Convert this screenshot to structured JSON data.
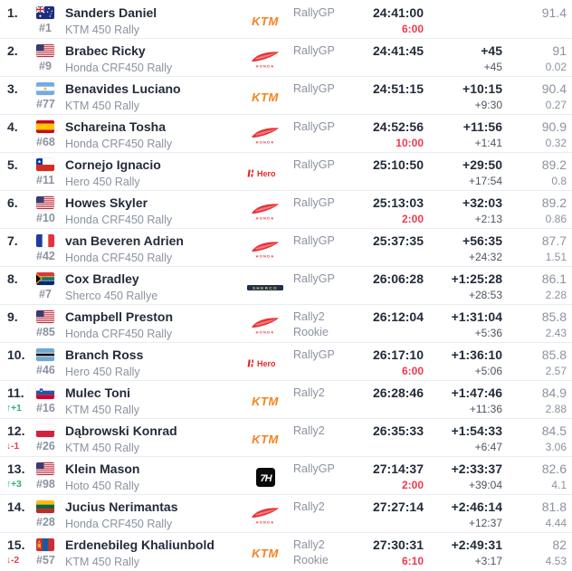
{
  "colors": {
    "text_dark": "#222b3a",
    "text_gray": "#8b92a1",
    "gap_interval_gray": "#4d5461",
    "penalty_red": "#ee3a4d",
    "change_up_green": "#2bb673",
    "change_down_red": "#ee3a4d",
    "divider": "#e9ebf0",
    "ktm_orange": "#f5821f",
    "honda_red": "#e62e34",
    "hero_red": "#e02a26",
    "sherco_navy": "#23304d",
    "sherco_yellow": "#cdd84a",
    "hoto_black": "#0a0a0a"
  },
  "glyphs": {
    "arrow_up": "↑",
    "arrow_down": "↓"
  },
  "table": {
    "rows": [
      {
        "position": "1.",
        "change": null,
        "flag": "australia",
        "rider": "Sanders Daniel",
        "number": "#1",
        "bike": "KTM 450 Rally",
        "brand": "ktm",
        "category": "RallyGP",
        "subcategory": "",
        "time": "24:41:00",
        "penalty": "6:00",
        "gap": "",
        "gap_interval": "",
        "score": "91.4",
        "score_gap": ""
      },
      {
        "position": "2.",
        "change": null,
        "flag": "usa",
        "rider": "Brabec Ricky",
        "number": "#9",
        "bike": "Honda CRF450 Rally",
        "brand": "honda",
        "category": "RallyGP",
        "subcategory": "",
        "time": "24:41:45",
        "penalty": "",
        "gap": "+45",
        "gap_interval": "+45",
        "score": "91",
        "score_gap": "0.02"
      },
      {
        "position": "3.",
        "change": null,
        "flag": "argentina",
        "rider": "Benavides Luciano",
        "number": "#77",
        "bike": "KTM 450 Rally",
        "brand": "ktm",
        "category": "RallyGP",
        "subcategory": "",
        "time": "24:51:15",
        "penalty": "",
        "gap": "+10:15",
        "gap_interval": "+9:30",
        "score": "90.4",
        "score_gap": "0.27"
      },
      {
        "position": "4.",
        "change": null,
        "flag": "spain",
        "rider": "Schareina Tosha",
        "number": "#68",
        "bike": "Honda CRF450 Rally",
        "brand": "honda",
        "category": "RallyGP",
        "subcategory": "",
        "time": "24:52:56",
        "penalty": "10:00",
        "gap": "+11:56",
        "gap_interval": "+1:41",
        "score": "90.9",
        "score_gap": "0.32"
      },
      {
        "position": "5.",
        "change": null,
        "flag": "chile",
        "rider": "Cornejo Ignacio",
        "number": "#11",
        "bike": "Hero 450 Rally",
        "brand": "hero",
        "category": "RallyGP",
        "subcategory": "",
        "time": "25:10:50",
        "penalty": "",
        "gap": "+29:50",
        "gap_interval": "+17:54",
        "score": "89.2",
        "score_gap": "0.8"
      },
      {
        "position": "6.",
        "change": null,
        "flag": "usa",
        "rider": "Howes Skyler",
        "number": "#10",
        "bike": "Honda CRF450 Rally",
        "brand": "honda",
        "category": "RallyGP",
        "subcategory": "",
        "time": "25:13:03",
        "penalty": "2:00",
        "gap": "+32:03",
        "gap_interval": "+2:13",
        "score": "89.2",
        "score_gap": "0.86"
      },
      {
        "position": "7.",
        "change": null,
        "flag": "france",
        "rider": "van Beveren Adrien",
        "number": "#42",
        "bike": "Honda CRF450 Rally",
        "brand": "honda",
        "category": "RallyGP",
        "subcategory": "",
        "time": "25:37:35",
        "penalty": "",
        "gap": "+56:35",
        "gap_interval": "+24:32",
        "score": "87.7",
        "score_gap": "1.51"
      },
      {
        "position": "8.",
        "change": null,
        "flag": "south-africa",
        "rider": "Cox Bradley",
        "number": "#7",
        "bike": "Sherco 450 Rallye",
        "brand": "sherco",
        "category": "RallyGP",
        "subcategory": "",
        "time": "26:06:28",
        "penalty": "",
        "gap": "+1:25:28",
        "gap_interval": "+28:53",
        "score": "86.1",
        "score_gap": "2.28"
      },
      {
        "position": "9.",
        "change": null,
        "flag": "usa",
        "rider": "Campbell Preston",
        "number": "#85",
        "bike": "Honda CRF450 Rally",
        "brand": "honda",
        "category": "Rally2",
        "subcategory": "Rookie",
        "time": "26:12:04",
        "penalty": "",
        "gap": "+1:31:04",
        "gap_interval": "+5:36",
        "score": "85.8",
        "score_gap": "2.43"
      },
      {
        "position": "10.",
        "change": null,
        "flag": "botswana",
        "rider": "Branch Ross",
        "number": "#46",
        "bike": "Hero 450 Rally",
        "brand": "hero",
        "category": "RallyGP",
        "subcategory": "",
        "time": "26:17:10",
        "penalty": "6:00",
        "gap": "+1:36:10",
        "gap_interval": "+5:06",
        "score": "85.8",
        "score_gap": "2.57"
      },
      {
        "position": "11.",
        "change": {
          "dir": "up",
          "value": "+1"
        },
        "flag": "slovenia",
        "rider": "Mulec Toni",
        "number": "#16",
        "bike": "KTM 450 Rally",
        "brand": "ktm",
        "category": "Rally2",
        "subcategory": "",
        "time": "26:28:46",
        "penalty": "",
        "gap": "+1:47:46",
        "gap_interval": "+11:36",
        "score": "84.9",
        "score_gap": "2.88"
      },
      {
        "position": "12.",
        "change": {
          "dir": "down",
          "value": "-1"
        },
        "flag": "poland",
        "rider": "Dąbrowski Konrad",
        "number": "#26",
        "bike": "KTM 450 Rally",
        "brand": "ktm",
        "category": "Rally2",
        "subcategory": "",
        "time": "26:35:33",
        "penalty": "",
        "gap": "+1:54:33",
        "gap_interval": "+6:47",
        "score": "84.5",
        "score_gap": "3.06"
      },
      {
        "position": "13.",
        "change": {
          "dir": "up",
          "value": "+3"
        },
        "flag": "usa",
        "rider": "Klein Mason",
        "number": "#98",
        "bike": "Hoto 450 Rally",
        "brand": "hoto",
        "category": "RallyGP",
        "subcategory": "",
        "time": "27:14:37",
        "penalty": "2:00",
        "gap": "+2:33:37",
        "gap_interval": "+39:04",
        "score": "82.6",
        "score_gap": "4.1"
      },
      {
        "position": "14.",
        "change": null,
        "flag": "lithuania",
        "rider": "Jucius Nerimantas",
        "number": "#28",
        "bike": "Honda CRF450 Rally",
        "brand": "honda",
        "category": "Rally2",
        "subcategory": "",
        "time": "27:27:14",
        "penalty": "",
        "gap": "+2:46:14",
        "gap_interval": "+12:37",
        "score": "81.8",
        "score_gap": "4.44"
      },
      {
        "position": "15.",
        "change": {
          "dir": "down",
          "value": "-2"
        },
        "flag": "mongolia",
        "rider": "Erdenebileg Khaliunbold",
        "number": "#57",
        "bike": "KTM 450 Rally",
        "brand": "ktm",
        "category": "Rally2",
        "subcategory": "Rookie",
        "time": "27:30:31",
        "penalty": "6:10",
        "gap": "+2:49:31",
        "gap_interval": "+3:17",
        "score": "82",
        "score_gap": "4.53"
      }
    ]
  }
}
